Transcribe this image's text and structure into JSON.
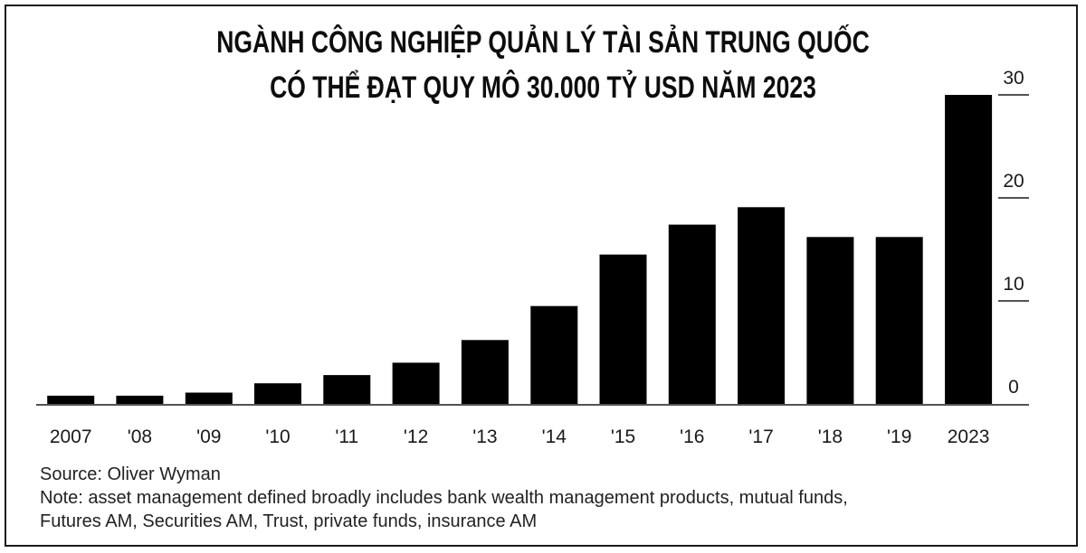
{
  "chart_data": {
    "type": "bar",
    "title": "NGÀNH CÔNG NGHIỆP QUẢN LÝ TÀI SẢN TRUNG QUỐC",
    "subtitle": "CÓ THỂ ĐẠT QUY MÔ 30.000 TỶ USD NĂM 2023",
    "categories": [
      "2007",
      "'08",
      "'09",
      "'10",
      "'11",
      "'12",
      "'13",
      "'14",
      "'15",
      "'16",
      "'17",
      "'18",
      "'19",
      "2023"
    ],
    "values": [
      0.8,
      0.8,
      1.1,
      2.0,
      2.8,
      4.0,
      6.2,
      9.5,
      14.5,
      17.4,
      19.1,
      16.2,
      16.2,
      30.0
    ],
    "y_ticks": [
      "0",
      "10",
      "20",
      "30"
    ],
    "ylim": [
      0,
      30
    ],
    "y_axis_position": "right",
    "bar_color": "#000000",
    "grid": false,
    "xlabel": "",
    "ylabel": ""
  },
  "source": "Source: Oliver Wyman",
  "note_line1": "Note: asset management defined broadly includes bank wealth management products, mutual funds,",
  "note_line2": "Futures AM, Securities AM, Trust, private funds, insurance AM"
}
